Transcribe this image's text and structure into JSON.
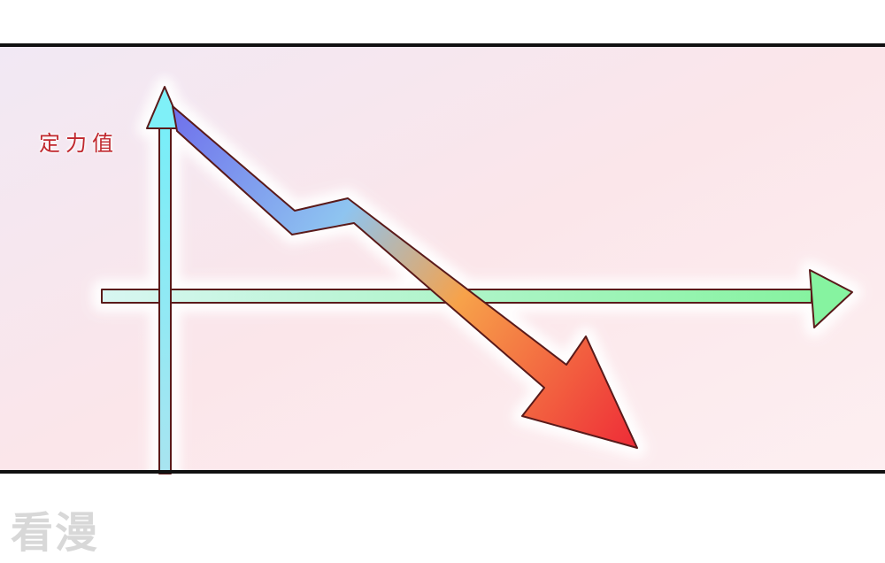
{
  "panel": {
    "axis_label": "定力值",
    "watermark": "看漫"
  },
  "colors": {
    "vertical_axis": "#7ff0f8",
    "horizontal_axis": "#8ff5a8",
    "trend_start": "#6f70ec",
    "trend_mid": "#8ec4f0",
    "trend_orange": "#f7a24a",
    "trend_end": "#ee2b37",
    "outline": "#5a1a1a"
  }
}
